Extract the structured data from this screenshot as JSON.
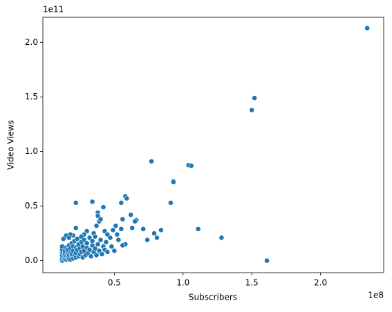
{
  "chart_data": {
    "type": "scatter",
    "x_label": "Subscribers",
    "y_label": "Video Views",
    "x_offset_label": "1e8",
    "y_offset_label": "1e11",
    "color": "#1f77b4",
    "xlim": [
      -0.02,
      2.46
    ],
    "ylim": [
      -0.11,
      2.23
    ],
    "xticks": [
      0.5,
      {
        "value": 1,
        "label": "1.0"
      },
      1.5,
      {
        "value": 2,
        "label": "2.0"
      }
    ],
    "yticks": [
      {
        "value": 0,
        "label": "0.0"
      },
      0.5,
      {
        "value": 1,
        "label": "1.0"
      },
      1.5,
      {
        "value": 2,
        "label": "2.0"
      }
    ],
    "x": [
      2.34,
      1.52,
      1.5,
      0.77,
      1.04,
      1.06,
      0.93,
      0.93,
      0.58,
      0.59,
      0.55,
      0.34,
      0.22,
      0.91,
      0.42,
      0.62,
      0.66,
      0.65,
      0.56,
      0.71,
      0.84,
      1.11,
      0.79,
      0.81,
      0.74,
      1.28,
      1.61,
      0.58,
      0.56,
      0.63,
      0.51,
      0.55,
      0.49,
      0.38,
      0.38,
      0.39,
      0.37,
      0.4,
      0.43,
      0.45,
      0.35,
      0.3,
      0.28,
      0.26,
      0.22,
      0.2,
      0.18,
      0.12,
      0.12,
      0.12,
      0.12,
      0.12,
      0.12,
      0.13,
      0.13,
      0.14,
      0.14,
      0.14,
      0.15,
      0.15,
      0.15,
      0.16,
      0.16,
      0.16,
      0.17,
      0.17,
      0.17,
      0.18,
      0.18,
      0.18,
      0.19,
      0.19,
      0.19,
      0.2,
      0.2,
      0.2,
      0.21,
      0.21,
      0.22,
      0.22,
      0.22,
      0.23,
      0.23,
      0.24,
      0.24,
      0.25,
      0.25,
      0.26,
      0.26,
      0.27,
      0.27,
      0.28,
      0.28,
      0.29,
      0.3,
      0.3,
      0.31,
      0.32,
      0.32,
      0.33,
      0.34,
      0.34,
      0.35,
      0.36,
      0.36,
      0.37,
      0.38,
      0.39,
      0.4,
      0.41,
      0.42,
      0.43,
      0.44,
      0.45,
      0.47,
      0.48,
      0.5,
      0.52,
      0.53,
      0.13,
      0.15,
      0.17
    ],
    "values": [
      2.13,
      1.49,
      1.38,
      0.91,
      0.875,
      0.87,
      0.73,
      0.72,
      0.59,
      0.57,
      0.53,
      0.54,
      0.53,
      0.53,
      0.49,
      0.42,
      0.37,
      0.36,
      0.38,
      0.29,
      0.28,
      0.29,
      0.25,
      0.21,
      0.19,
      0.21,
      0.0,
      0.15,
      0.14,
      0.3,
      0.32,
      0.29,
      0.28,
      0.44,
      0.41,
      0.36,
      0.32,
      0.38,
      0.27,
      0.24,
      0.25,
      0.27,
      0.24,
      0.22,
      0.3,
      0.23,
      0.24,
      0.0,
      0.02,
      0.05,
      0.08,
      0.1,
      0.13,
      0.01,
      0.04,
      0.02,
      0.06,
      0.09,
      0.01,
      0.04,
      0.12,
      0.03,
      0.07,
      0.1,
      0.02,
      0.05,
      0.14,
      0.01,
      0.08,
      0.11,
      0.04,
      0.06,
      0.16,
      0.02,
      0.09,
      0.13,
      0.05,
      0.18,
      0.03,
      0.07,
      0.12,
      0.1,
      0.2,
      0.04,
      0.15,
      0.06,
      0.11,
      0.08,
      0.17,
      0.03,
      0.13,
      0.09,
      0.19,
      0.05,
      0.12,
      0.16,
      0.07,
      0.1,
      0.21,
      0.04,
      0.14,
      0.18,
      0.08,
      0.11,
      0.22,
      0.05,
      0.15,
      0.09,
      0.19,
      0.06,
      0.13,
      0.1,
      0.17,
      0.08,
      0.21,
      0.13,
      0.09,
      0.24,
      0.19,
      0.2,
      0.23,
      0.21
    ]
  }
}
